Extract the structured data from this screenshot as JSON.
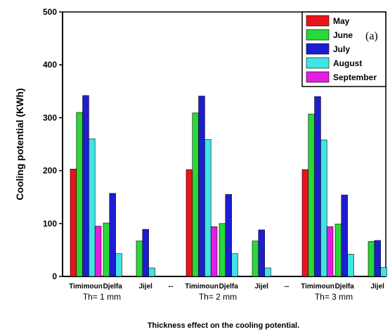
{
  "chart_data": {
    "type": "bar",
    "ylabel": "Cooling potential (KWh)",
    "xlabel": "Thickness effect on the cooling potential.",
    "panel_label": "(a)",
    "ylim": [
      0,
      500
    ],
    "yticks": [
      0,
      100,
      200,
      300,
      400,
      500
    ],
    "legend_position": "top-right",
    "groups": [
      {
        "label": "Th= 1 mm",
        "categories": [
          "Timimoun",
          "Djelfa",
          "Jijel"
        ],
        "series": [
          {
            "name": "May",
            "values": [
              203,
              0,
              0
            ]
          },
          {
            "name": "June",
            "values": [
              310,
              101,
              67
            ]
          },
          {
            "name": "July",
            "values": [
              342,
              157,
              89
            ]
          },
          {
            "name": "August",
            "values": [
              260,
              43,
              16
            ]
          },
          {
            "name": "September",
            "values": [
              95,
              0,
              0
            ]
          }
        ]
      },
      {
        "label": "Th= 2 mm",
        "categories": [
          "Timimoun",
          "Djelfa",
          "Jijel"
        ],
        "series": [
          {
            "name": "May",
            "values": [
              202,
              0,
              0
            ]
          },
          {
            "name": "June",
            "values": [
              309,
              100,
              67
            ]
          },
          {
            "name": "July",
            "values": [
              341,
              155,
              88
            ]
          },
          {
            "name": "August",
            "values": [
              259,
              43,
              16
            ]
          },
          {
            "name": "September",
            "values": [
              94,
              0,
              0
            ]
          }
        ]
      },
      {
        "label": "Th= 3 mm",
        "categories": [
          "Timimoun",
          "Djelfa",
          "Jijel"
        ],
        "series": [
          {
            "name": "May",
            "values": [
              202,
              0,
              0
            ]
          },
          {
            "name": "June",
            "values": [
              307,
              99,
              66
            ]
          },
          {
            "name": "July",
            "values": [
              340,
              154,
              68
            ]
          },
          {
            "name": "August",
            "values": [
              258,
              42,
              17
            ]
          },
          {
            "name": "September",
            "values": [
              94,
              0,
              0
            ]
          }
        ]
      }
    ],
    "separator_label": "--",
    "colors": {
      "May": "#e8141c",
      "June": "#29d839",
      "July": "#1d1dd4",
      "August": "#3fe4e4",
      "September": "#e21ee2"
    }
  }
}
